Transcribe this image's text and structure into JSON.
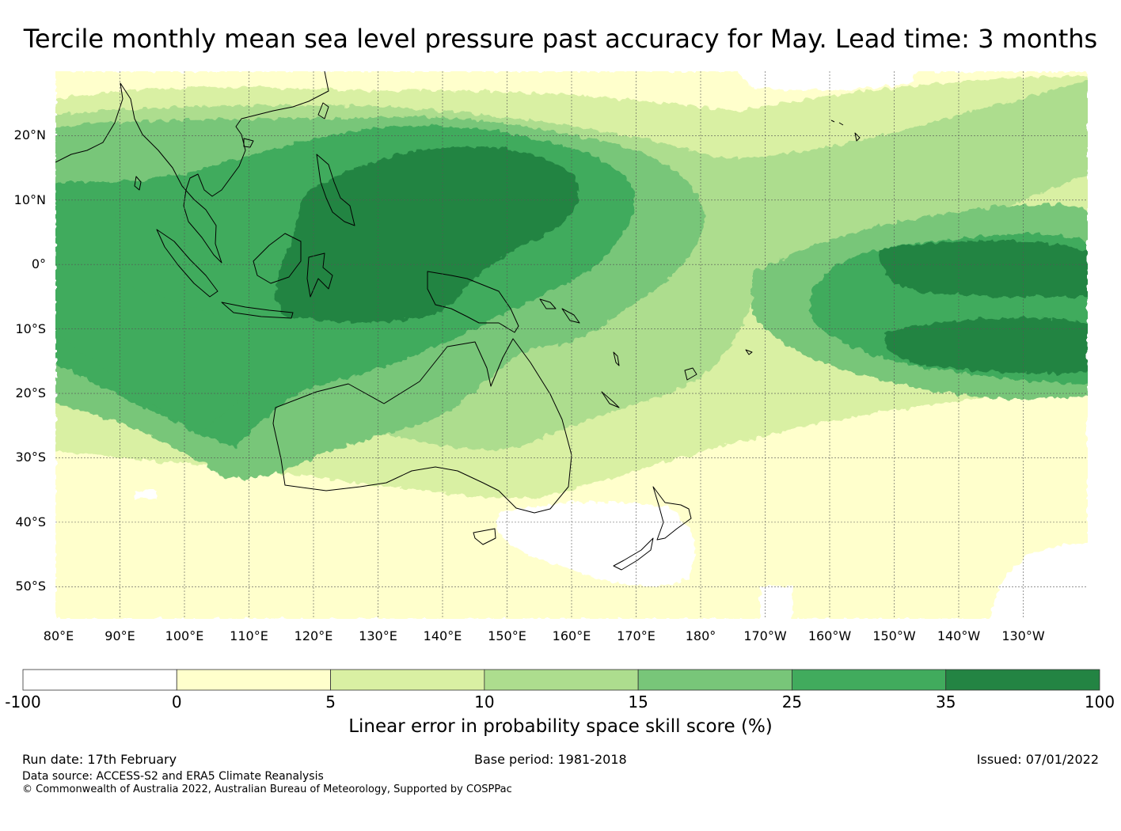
{
  "title": "Tercile monthly mean sea level pressure past accuracy for May. Lead time: 3 months",
  "map": {
    "lat_labels": [
      "20°N",
      "10°N",
      "0°",
      "10°S",
      "20°S",
      "30°S",
      "40°S",
      "50°S"
    ],
    "lon_labels": [
      "80°E",
      "90°E",
      "100°E",
      "110°E",
      "120°E",
      "130°E",
      "140°E",
      "150°E",
      "160°E",
      "170°E",
      "180°",
      "170°W",
      "160°W",
      "150°W",
      "140°W",
      "130°W"
    ],
    "extent": {
      "lon_min": 80,
      "lon_max": 240,
      "lat_min": -55,
      "lat_max": 30
    }
  },
  "colorbar": {
    "title": "Linear error in probability space skill score (%)",
    "ticks": [
      "-100",
      "0",
      "5",
      "10",
      "15",
      "25",
      "35",
      "100"
    ],
    "colors": [
      "#ffffff",
      "#ffffcc",
      "#d9f0a3",
      "#addd8e",
      "#78c679",
      "#41ab5d",
      "#238443"
    ]
  },
  "footer": {
    "run_date": "Run date: 17th February",
    "base_period": "Base period: 1981-2018",
    "issued": "Issued: 07/01/2022",
    "data_source": "Data source: ACCESS-S2 and ERA5 Climate Reanalysis",
    "copyright": "© Commonwealth of Australia 2022, Australian Bureau of Meteorology, Supported by COSPPac"
  }
}
